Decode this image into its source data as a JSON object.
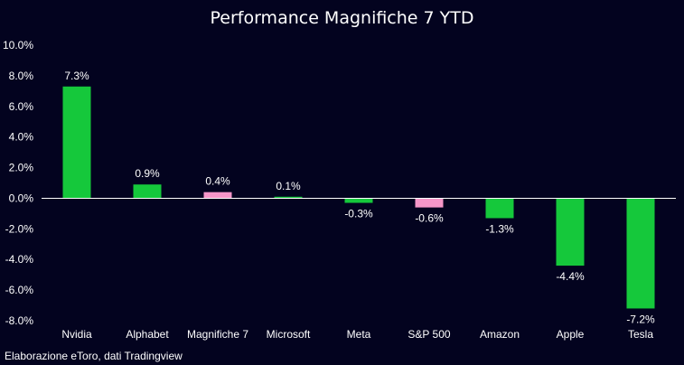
{
  "chart_data": {
    "type": "bar",
    "title": "Performance Magnifiche 7 YTD",
    "xlabel": "",
    "ylabel": "",
    "categories": [
      "Nvidia",
      "Alphabet",
      "Magnifiche 7",
      "Microsoft",
      "Meta",
      "S&P 500",
      "Amazon",
      "Apple",
      "Tesla"
    ],
    "values": [
      7.3,
      0.9,
      0.4,
      0.1,
      -0.3,
      -0.6,
      -1.3,
      -4.4,
      -7.2
    ],
    "data_labels": [
      "7.3%",
      "0.9%",
      "0.4%",
      "0.1%",
      "-0.3%",
      "-0.6%",
      "-1.3%",
      "-4.4%",
      "-7.2%"
    ],
    "bar_colors": [
      "#15c83b",
      "#15c83b",
      "#f596c8",
      "#15c83b",
      "#15c83b",
      "#f596c8",
      "#15c83b",
      "#15c83b",
      "#15c83b"
    ],
    "ylim": [
      -8.0,
      10.0
    ],
    "yticks": [
      10.0,
      8.0,
      6.0,
      4.0,
      2.0,
      0.0,
      -2.0,
      -4.0,
      -6.0,
      -8.0
    ],
    "ytick_labels": [
      "10.0%",
      "8.0%",
      "6.0%",
      "4.0%",
      "2.0%",
      "0.0%",
      "-2.0%",
      "-4.0%",
      "-6.0%",
      "-8.0%"
    ],
    "grid": false,
    "legend": "none"
  },
  "source_note": "Elaborazione eToro, dati Tradingview",
  "colors": {
    "background": "#03031f",
    "text": "#ffffff",
    "zero_line": "#ffffff"
  }
}
